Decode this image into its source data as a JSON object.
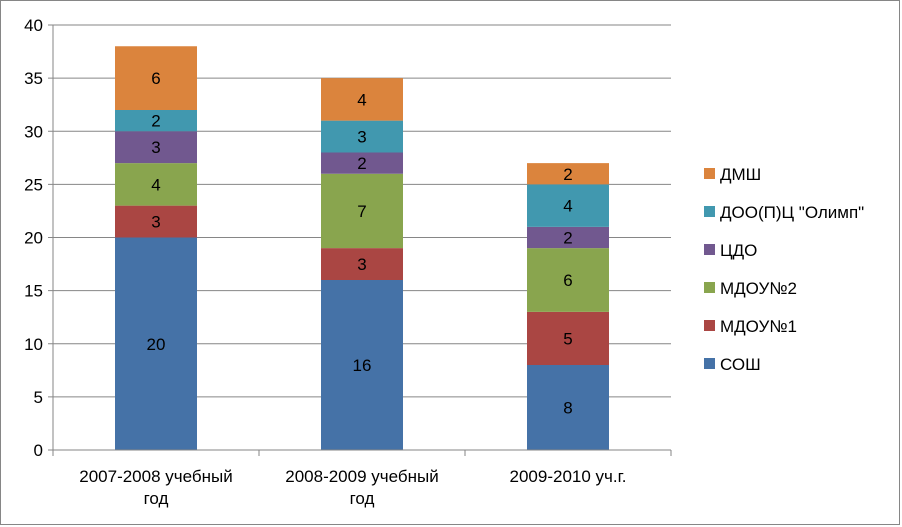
{
  "chart_data": {
    "type": "bar",
    "stacked": true,
    "categories": [
      [
        "2007-2008 учебный",
        "год"
      ],
      [
        "2008-2009 учебный",
        "год"
      ],
      [
        "2009-2010 уч.г."
      ]
    ],
    "series": [
      {
        "name": "СОШ",
        "color": "#4572A7",
        "values": [
          20,
          16,
          8
        ]
      },
      {
        "name": "МДОУ№1",
        "color": "#AA4643",
        "values": [
          3,
          3,
          5
        ]
      },
      {
        "name": "МДОУ№2",
        "color": "#89A54E",
        "values": [
          4,
          7,
          6
        ]
      },
      {
        "name": "ЦДО",
        "color": "#71588F",
        "values": [
          3,
          2,
          2
        ]
      },
      {
        "name": "ДОО(П)Ц \"Олимп\"",
        "color": "#4198AF",
        "values": [
          2,
          3,
          4
        ]
      },
      {
        "name": "ДМШ",
        "color": "#DB843D",
        "values": [
          6,
          4,
          2
        ]
      }
    ],
    "ylim": [
      0,
      40
    ],
    "yticks": [
      0,
      5,
      10,
      15,
      20,
      25,
      30,
      35,
      40
    ],
    "grid": true,
    "legend_position": "right",
    "legend_order": [
      5,
      4,
      3,
      2,
      1,
      0
    ]
  }
}
